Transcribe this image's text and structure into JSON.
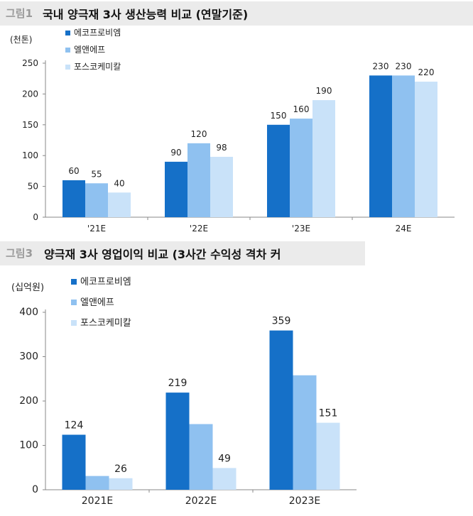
{
  "figures": {
    "fig1": {
      "number": "그림1",
      "title": "국내 양극재 3사 생산능력 비교 (연말기준)"
    },
    "fig3": {
      "number": "그림3",
      "title": "양극재 3사 영업이익 비교 (3사간 수익성 격차 커"
    }
  },
  "colors": {
    "series1": "#1570c8",
    "series2": "#8fc1f0",
    "series3": "#c9e2f9",
    "axis": "#888888"
  },
  "chart_data": [
    {
      "type": "bar",
      "unit_label": "(천톤)",
      "categories": [
        "'21E",
        "'22E",
        "'23E",
        "24E"
      ],
      "series": [
        {
          "name": "에코프로비엠",
          "values": [
            60,
            90,
            150,
            230
          ]
        },
        {
          "name": "엘앤에프",
          "values": [
            55,
            120,
            160,
            230
          ]
        },
        {
          "name": "포스코케미칼",
          "values": [
            40,
            98,
            190,
            220
          ]
        }
      ],
      "value_labels": [
        [
          "60",
          "90",
          "150",
          "230"
        ],
        [
          "55",
          "120",
          "160",
          "230"
        ],
        [
          "40",
          "98",
          "190",
          "220"
        ]
      ],
      "yticks": [
        0,
        50,
        100,
        150,
        200,
        250
      ],
      "ylim": [
        0,
        250
      ],
      "legend_position": "top-left",
      "grid": false
    },
    {
      "type": "bar",
      "unit_label": "(십억원)",
      "categories": [
        "2021E",
        "2022E",
        "2023E"
      ],
      "series": [
        {
          "name": "에코프로비엠",
          "values": [
            124,
            219,
            359
          ]
        },
        {
          "name": "엘앤에프",
          "values": [
            31,
            148,
            258
          ]
        },
        {
          "name": "포스코케미칼",
          "values": [
            26,
            49,
            151
          ]
        }
      ],
      "value_labels": [
        [
          "124",
          "219",
          "359"
        ],
        [
          "",
          "",
          ""
        ],
        [
          "26",
          "49",
          "151"
        ]
      ],
      "yticks": [
        0,
        100,
        200,
        300,
        400
      ],
      "ylim": [
        0,
        400
      ],
      "legend_position": "top-left",
      "grid": false
    }
  ]
}
